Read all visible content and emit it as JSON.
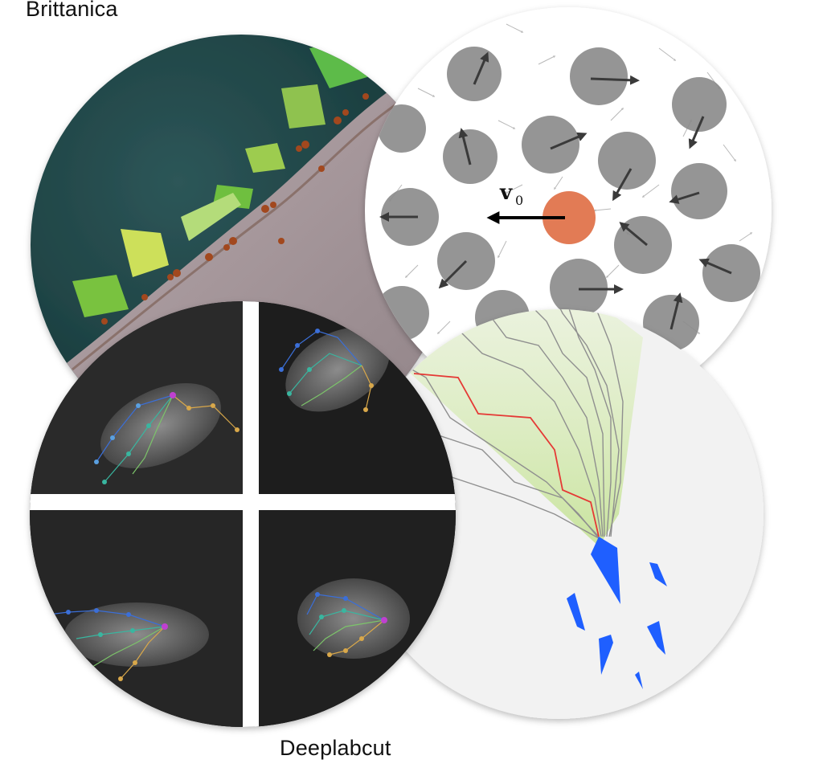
{
  "captions": {
    "top_left": "Brittanica",
    "bottom": "Deeplabcut"
  },
  "panels": {
    "leafcutter_ants": {
      "kind": "photograph",
      "subject": "leafcutter ants carrying leaf fragments"
    },
    "active_particles": {
      "kind": "vector-field figure",
      "label_vector": "v",
      "label_subscript": "0"
    },
    "mouse_paw_tracking": {
      "kind": "pose-estimation photo grid",
      "quadrants": 4
    },
    "tree_paths": {
      "kind": "branching path diagram"
    }
  },
  "colors": {
    "particle_grey": "#8a8a8a",
    "particle_orange": "#e27b55",
    "highlight_path": "#e53935",
    "blue_shards": "#1f5fff",
    "green_cone": "#cfe6a6",
    "right_circle_bg": "#f2f2f2"
  }
}
